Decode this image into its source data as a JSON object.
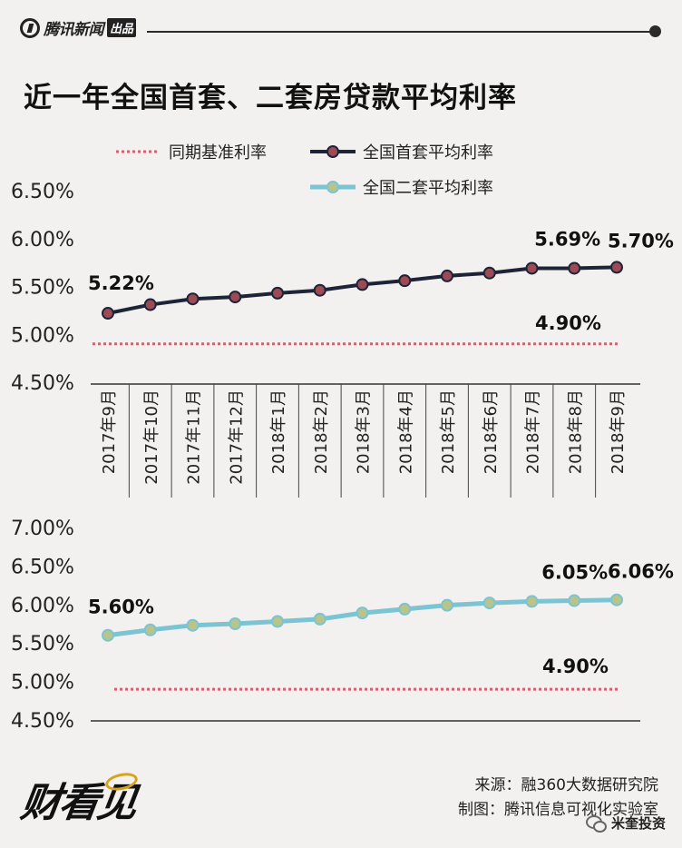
{
  "header": {
    "brand": "腾讯新闻",
    "brand_tag": "出品"
  },
  "title": "近一年全国首套、二套房贷款平均利率",
  "legend": {
    "base_rate": "同期基准利率",
    "first_home": "全国首套平均利率",
    "second_home": "全国二套平均利率"
  },
  "colors": {
    "first_line": "#1e2438",
    "first_marker": "#9e4a55",
    "second_line": "#7ac4d3",
    "second_marker": "#b8c48a",
    "base_rate": "#d6606d"
  },
  "chart_data": [
    {
      "type": "line",
      "categories": [
        "2017年9月",
        "2017年10月",
        "2017年11月",
        "2017年12月",
        "2018年1月",
        "2018年2月",
        "2018年3月",
        "2018年4月",
        "2018年5月",
        "2018年6月",
        "2018年7月",
        "2018年8月",
        "2018年9月"
      ],
      "series": [
        {
          "name": "全国首套平均利率",
          "values": [
            5.22,
            5.31,
            5.37,
            5.39,
            5.43,
            5.46,
            5.52,
            5.56,
            5.61,
            5.64,
            5.69,
            5.69,
            5.7
          ]
        },
        {
          "name": "同期基准利率",
          "values": [
            4.9,
            4.9,
            4.9,
            4.9,
            4.9,
            4.9,
            4.9,
            4.9,
            4.9,
            4.9,
            4.9,
            4.9,
            4.9
          ]
        }
      ],
      "y_ticks": [
        "6.50%",
        "6.00%",
        "5.50%",
        "5.00%",
        "4.50%"
      ],
      "ylim": [
        4.5,
        6.5
      ],
      "annotations": [
        "5.22%",
        "5.69%",
        "5.70%",
        "4.90%"
      ]
    },
    {
      "type": "line",
      "categories": [
        "2017年9月",
        "2017年10月",
        "2017年11月",
        "2017年12月",
        "2018年1月",
        "2018年2月",
        "2018年3月",
        "2018年4月",
        "2018年5月",
        "2018年6月",
        "2018年7月",
        "2018年8月",
        "2018年9月"
      ],
      "series": [
        {
          "name": "全国二套平均利率",
          "values": [
            5.6,
            5.67,
            5.73,
            5.75,
            5.78,
            5.81,
            5.89,
            5.94,
            5.99,
            6.02,
            6.04,
            6.05,
            6.06
          ]
        },
        {
          "name": "同期基准利率",
          "values": [
            4.9,
            4.9,
            4.9,
            4.9,
            4.9,
            4.9,
            4.9,
            4.9,
            4.9,
            4.9,
            4.9,
            4.9,
            4.9
          ]
        }
      ],
      "y_ticks": [
        "7.00%",
        "6.50%",
        "6.00%",
        "5.50%",
        "5.00%",
        "4.50%"
      ],
      "ylim": [
        4.5,
        7.0
      ],
      "annotations": [
        "5.60%",
        "6.05%",
        "6.06%",
        "4.90%"
      ]
    }
  ],
  "footer": {
    "logo_text": "财看见",
    "source": "来源：融360大数据研究院",
    "made_by": "制图：腾讯信息可视化实验室",
    "wechat": "米奎投资"
  }
}
